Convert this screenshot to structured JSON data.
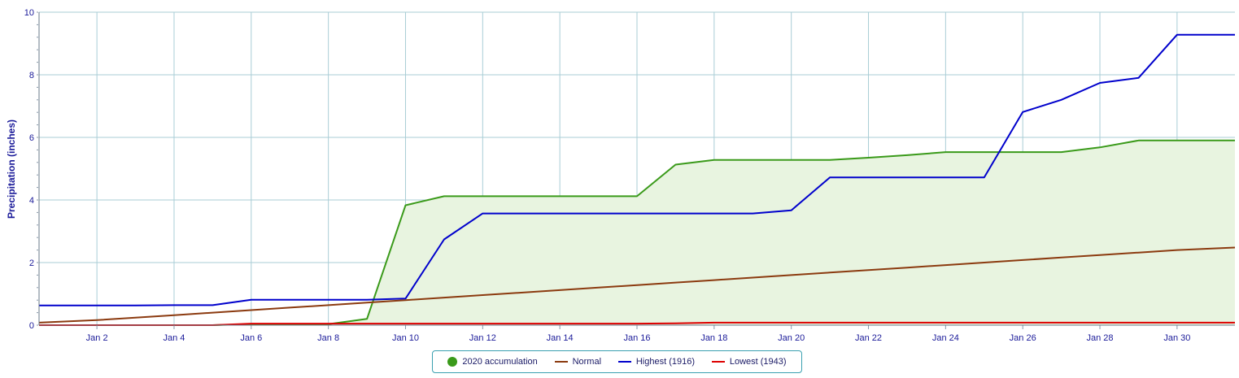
{
  "chart_data": {
    "type": "line",
    "title": "",
    "xlabel": "",
    "ylabel": "Precipitation (inches)",
    "ylim": [
      0,
      10
    ],
    "yticks": [
      0,
      2,
      4,
      6,
      8,
      10
    ],
    "x_days": [
      1,
      2,
      3,
      4,
      5,
      6,
      7,
      8,
      9,
      10,
      11,
      12,
      13,
      14,
      15,
      16,
      17,
      18,
      19,
      20,
      21,
      22,
      23,
      24,
      25,
      26,
      27,
      28,
      29,
      30,
      31
    ],
    "x_tick_days": [
      2,
      4,
      6,
      8,
      10,
      12,
      14,
      16,
      18,
      20,
      22,
      24,
      26,
      28,
      30
    ],
    "x_tick_labels": [
      "Jan 2",
      "Jan 4",
      "Jan 6",
      "Jan 8",
      "Jan 10",
      "Jan 12",
      "Jan 14",
      "Jan 16",
      "Jan 18",
      "Jan 20",
      "Jan 22",
      "Jan 24",
      "Jan 26",
      "Jan 28",
      "Jan 30"
    ],
    "grid": true,
    "legend_position": "bottom-center",
    "series": [
      {
        "name": "2020 accumulation",
        "color": "#3a9a1a",
        "fill": "#e8f4e0",
        "style": "area",
        "values": [
          0,
          0,
          0,
          0,
          0,
          0.03,
          0.03,
          0.03,
          0.2,
          3.83,
          4.12,
          4.12,
          4.12,
          4.12,
          4.12,
          4.12,
          5.13,
          5.28,
          5.28,
          5.28,
          5.28,
          5.35,
          5.43,
          5.53,
          5.53,
          5.53,
          5.53,
          5.68,
          5.9,
          5.9,
          5.9
        ]
      },
      {
        "name": "Normal",
        "color": "#8b3a0f",
        "style": "line",
        "values": [
          0.08,
          0.16,
          0.24,
          0.32,
          0.4,
          0.48,
          0.56,
          0.64,
          0.72,
          0.8,
          0.88,
          0.96,
          1.04,
          1.12,
          1.2,
          1.28,
          1.36,
          1.44,
          1.52,
          1.6,
          1.68,
          1.76,
          1.84,
          1.92,
          2.0,
          2.08,
          2.16,
          2.24,
          2.32,
          2.4,
          2.48
        ]
      },
      {
        "name": "Highest (1916)",
        "color": "#0000cc",
        "style": "line",
        "values": [
          0.63,
          0.63,
          0.63,
          0.64,
          0.64,
          0.81,
          0.81,
          0.81,
          0.81,
          0.85,
          2.74,
          3.57,
          3.57,
          3.57,
          3.57,
          3.57,
          3.57,
          3.57,
          3.57,
          3.67,
          4.72,
          4.72,
          4.72,
          4.72,
          4.72,
          6.81,
          7.2,
          7.74,
          7.9,
          9.28,
          9.28
        ]
      },
      {
        "name": "Lowest (1943)",
        "color": "#dd0000",
        "style": "line",
        "values": [
          0,
          0,
          0,
          0,
          0,
          0.05,
          0.05,
          0.05,
          0.05,
          0.05,
          0.05,
          0.05,
          0.05,
          0.05,
          0.05,
          0.05,
          0.06,
          0.08,
          0.08,
          0.08,
          0.08,
          0.08,
          0.08,
          0.08,
          0.08,
          0.08,
          0.08,
          0.08,
          0.08,
          0.08,
          0.08
        ]
      }
    ]
  },
  "legend": {
    "items": [
      {
        "label": "2020 accumulation"
      },
      {
        "label": "Normal"
      },
      {
        "label": "Highest (1916)"
      },
      {
        "label": "Lowest (1943)"
      }
    ]
  }
}
